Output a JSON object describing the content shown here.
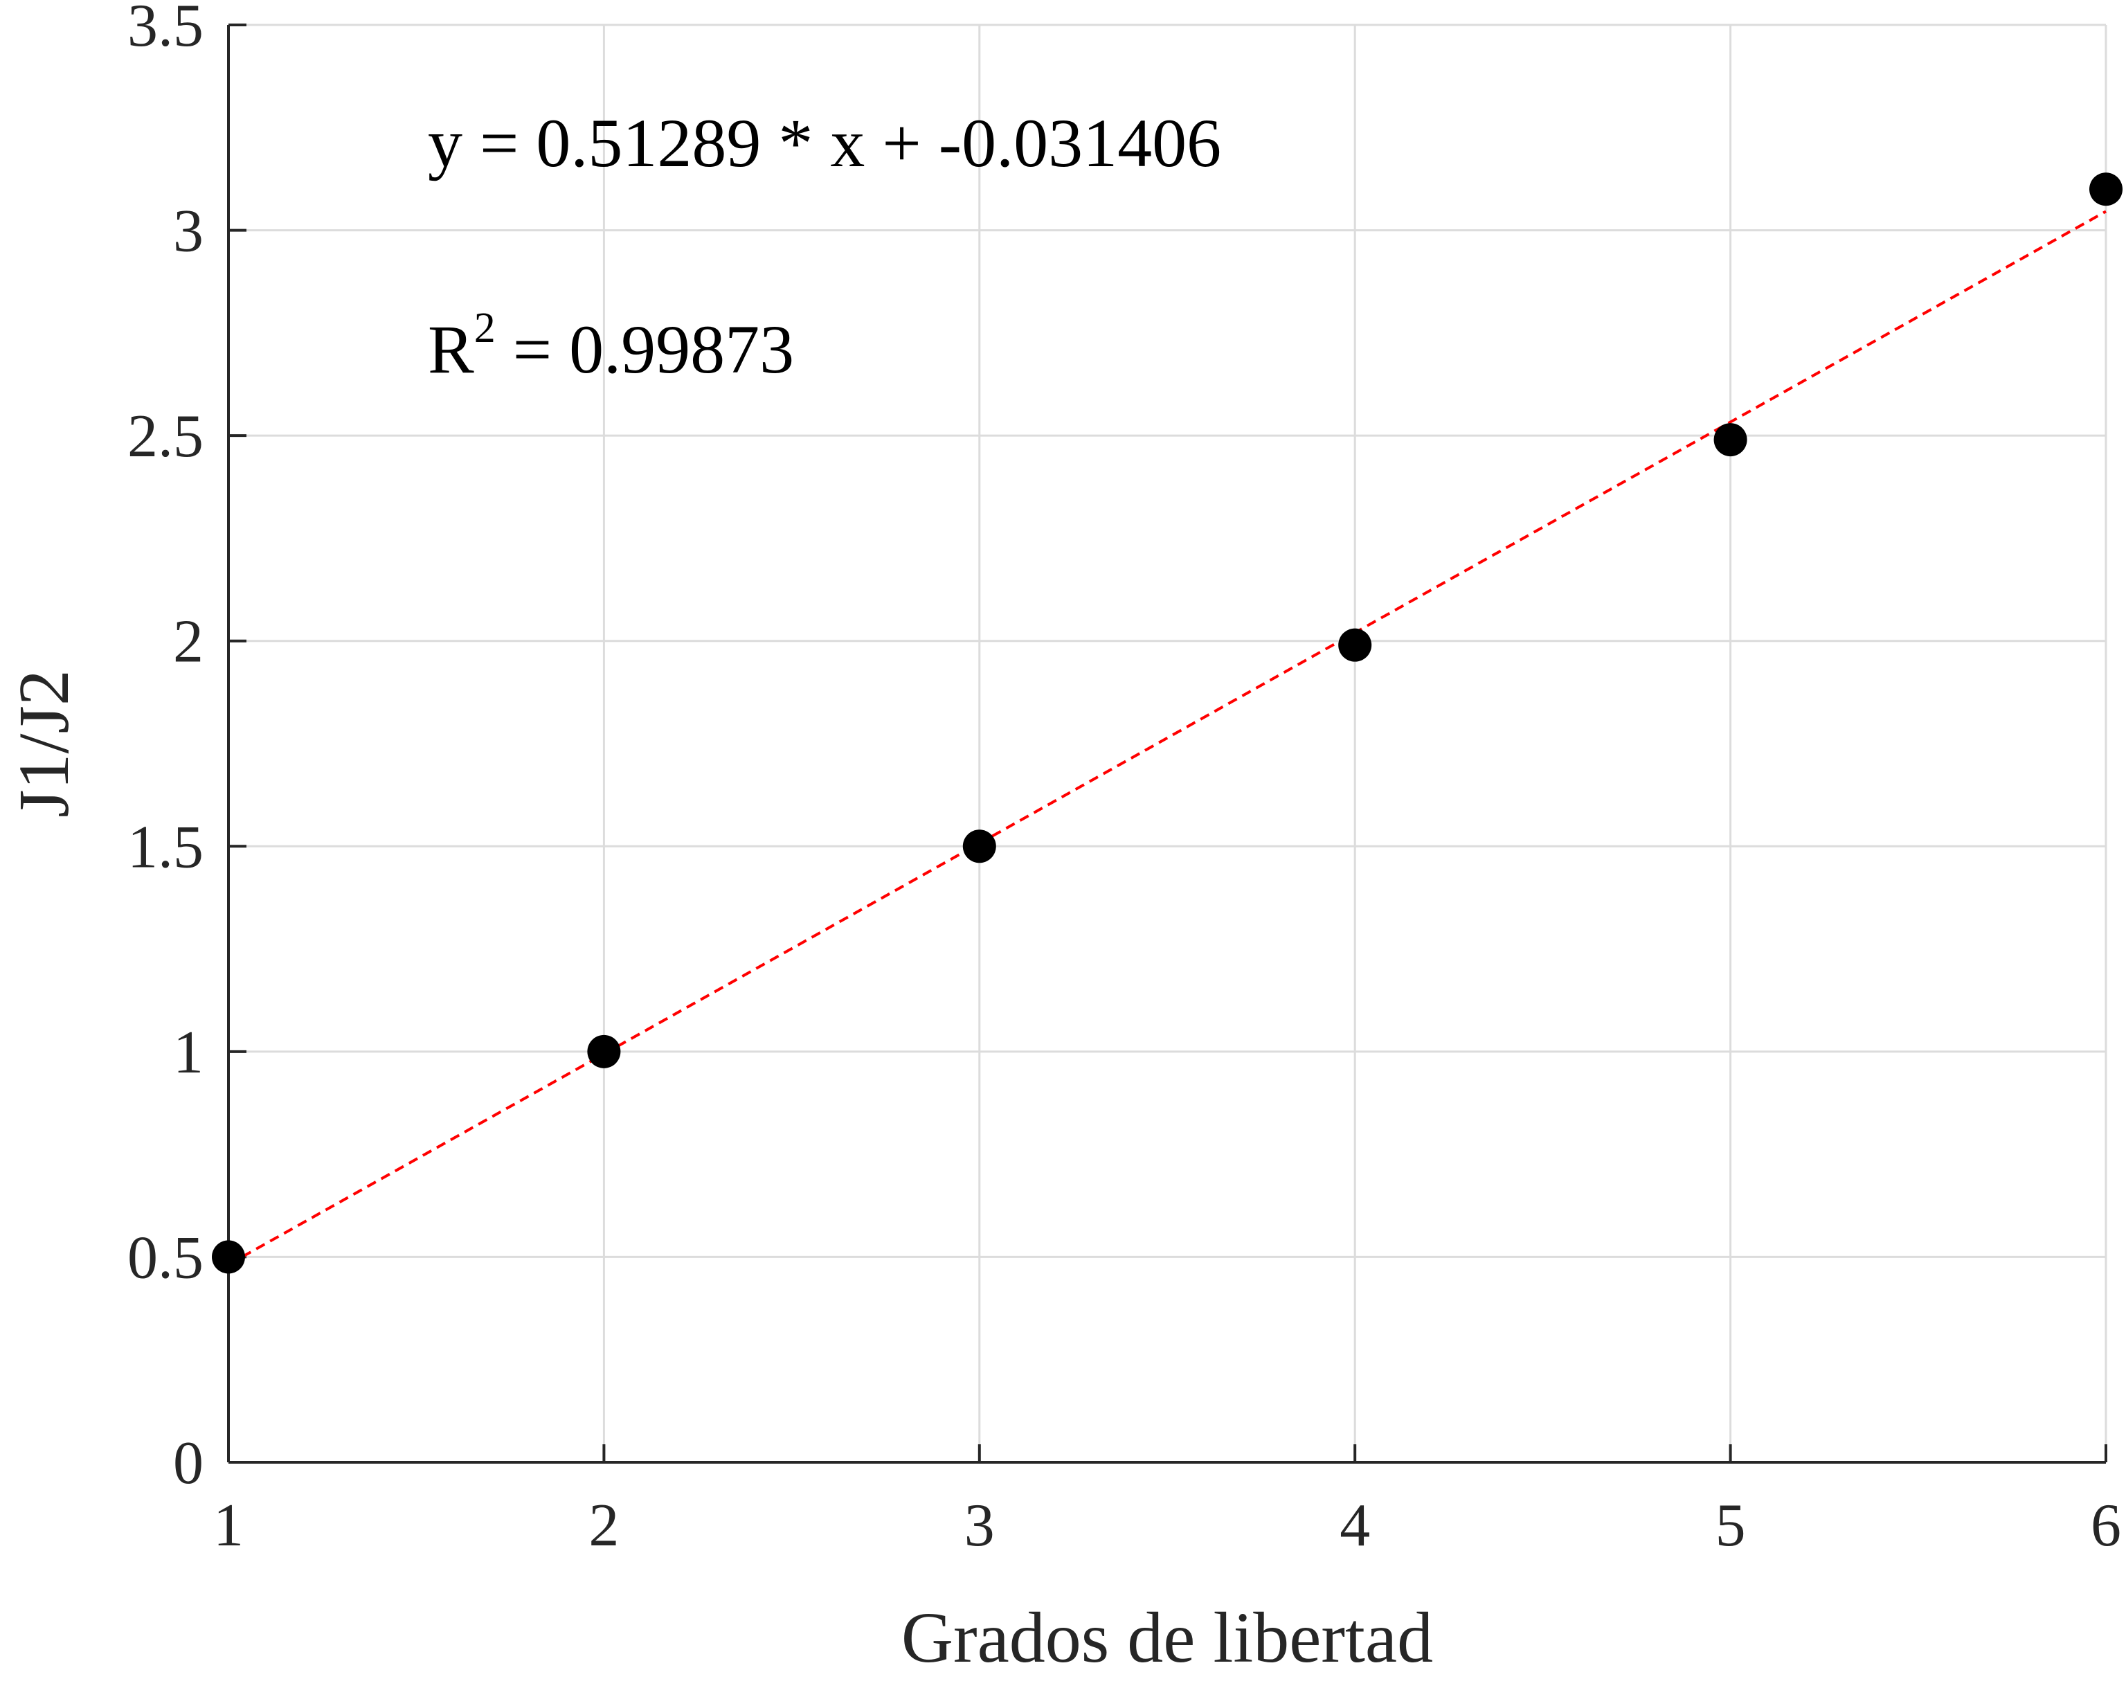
{
  "chart_data": {
    "type": "scatter",
    "title": "",
    "xlabel": "Grados de libertad",
    "ylabel": "J1/J2",
    "xlim": [
      1,
      6
    ],
    "ylim": [
      0,
      3.5
    ],
    "x_ticks": [
      "1",
      "2",
      "3",
      "4",
      "5",
      "6"
    ],
    "y_ticks": [
      "0",
      "0.5",
      "1",
      "1.5",
      "2",
      "2.5",
      "3",
      "3.5"
    ],
    "grid": true,
    "points": [
      {
        "x": 1,
        "y": 0.5
      },
      {
        "x": 2,
        "y": 1.0
      },
      {
        "x": 3,
        "y": 1.5
      },
      {
        "x": 4,
        "y": 1.99
      },
      {
        "x": 5,
        "y": 2.49
      },
      {
        "x": 6,
        "y": 3.1
      }
    ],
    "fit": {
      "slope": 0.51289,
      "intercept": -0.031406,
      "style": "dashed",
      "color": "#ff0000"
    },
    "annotations": {
      "equation": "y = 0.51289 * x + -0.031406",
      "r2_prefix": "R",
      "r2_exponent": "2",
      "r2_suffix": " = 0.99873"
    },
    "marker_color": "#000000"
  }
}
